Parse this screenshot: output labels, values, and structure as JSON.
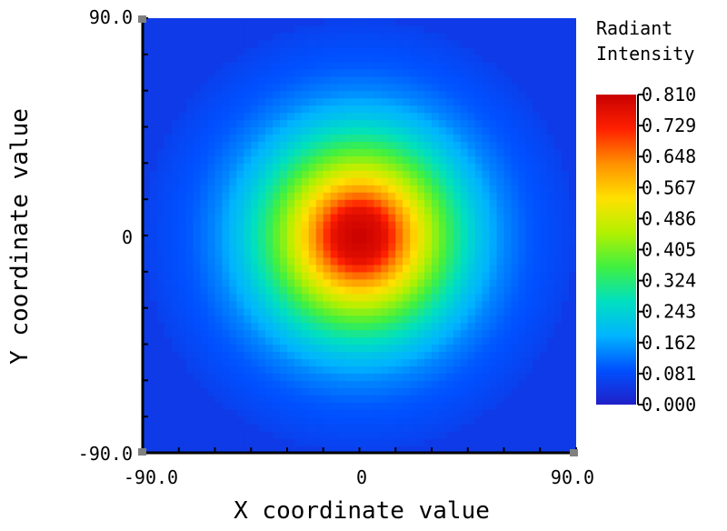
{
  "chart_data": {
    "type": "heatmap",
    "xlabel": "X coordinate value",
    "ylabel": "Y coordinate value",
    "xlim": [
      -90.0,
      90.0
    ],
    "ylim": [
      -90.0,
      90.0
    ],
    "x_tick_labels": [
      "-90.0",
      "0",
      "90.0"
    ],
    "y_tick_labels": [
      "90.0",
      "0",
      "-90.0"
    ],
    "colorbar": {
      "title": [
        "Radiant",
        "Intensity"
      ],
      "min": 0.0,
      "max": 0.81,
      "tick_labels": [
        "0.810",
        "0.729",
        "0.648",
        "0.567",
        "0.486",
        "0.405",
        "0.324",
        "0.243",
        "0.162",
        "0.081",
        "0.000"
      ],
      "colormap": [
        "#2020c8",
        "#0050ff",
        "#00b4ff",
        "#00e0c0",
        "#40f040",
        "#b4f000",
        "#ffe000",
        "#ff9000",
        "#ff2000",
        "#c80000"
      ]
    },
    "distribution": {
      "shape": "radially symmetric",
      "center": [
        0,
        0
      ],
      "peak": 0.81,
      "profile_radius": [
        0,
        10,
        20,
        30,
        40,
        50,
        60,
        70,
        80,
        90
      ],
      "profile_value": [
        0.81,
        0.77,
        0.6,
        0.44,
        0.31,
        0.21,
        0.14,
        0.1,
        0.08,
        0.06
      ],
      "background_value": 0.05
    }
  }
}
